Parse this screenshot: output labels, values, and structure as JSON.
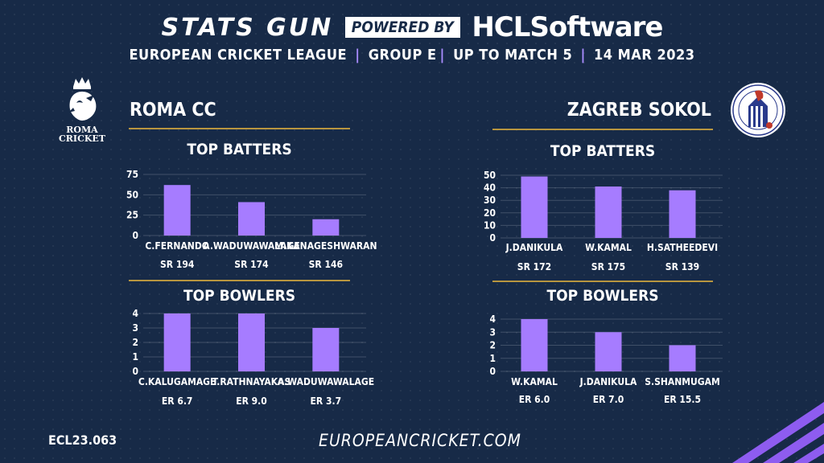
{
  "header": {
    "stats_gun": "STATS GUN",
    "powered_by": "POWERED BY",
    "hcl_a": "HCL",
    "hcl_b": "Software",
    "sub": [
      "EUROPEAN CRICKET LEAGUE",
      "GROUP  E",
      "UP TO MATCH  5",
      "14 MAR 2023"
    ]
  },
  "colors": {
    "background": "#172a47",
    "bar": "#a67cff",
    "accent": "#b8953f",
    "separator": "#a98cff"
  },
  "left_team": {
    "name": "ROMA CC",
    "logo_text": [
      "ROMA",
      "CRICKET"
    ],
    "logo_icon": "crowned-lion-icon"
  },
  "right_team": {
    "name": "ZAGREB SOKOL",
    "logo_icon": "falcon-badge-icon"
  },
  "footer": {
    "code": "ECL23.063",
    "site": "EUROPEANCRICKET.COM"
  },
  "chart_data": [
    {
      "id": "roma-batters",
      "type": "bar",
      "title": "TOP BATTERS",
      "team": "ROMA CC",
      "categories": [
        "C.FERNANDO",
        "A.WADUWAWALAGE",
        "M.KANAGESHWARAN"
      ],
      "values": [
        62,
        41,
        20
      ],
      "sub_labels": [
        "SR 194",
        "SR 174",
        "SR 146"
      ],
      "yticks": [
        0,
        25,
        50,
        75
      ],
      "ylim": [
        0,
        75
      ],
      "grid": true
    },
    {
      "id": "roma-bowlers",
      "type": "bar",
      "title": "TOP BOWLERS",
      "team": "ROMA CC",
      "categories": [
        "C.KALUGAMAGE",
        "T.RATHNAYAKAS",
        "A.WADUWAWALAGE"
      ],
      "values": [
        4,
        4,
        3
      ],
      "sub_labels": [
        "ER 6.7",
        "ER 9.0",
        "ER 3.7"
      ],
      "yticks": [
        0,
        1,
        2,
        3,
        4
      ],
      "ylim": [
        0,
        4
      ],
      "grid": true
    },
    {
      "id": "zagreb-batters",
      "type": "bar",
      "title": "TOP BATTERS",
      "team": "ZAGREB SOKOL",
      "categories": [
        "J.DANIKULA",
        "W.KAMAL",
        "H.SATHEEDEVI"
      ],
      "values": [
        49,
        41,
        38
      ],
      "sub_labels": [
        "SR 172",
        "SR 175",
        "SR 139"
      ],
      "yticks": [
        0,
        10,
        20,
        30,
        40,
        50
      ],
      "ylim": [
        0,
        50
      ],
      "grid": true
    },
    {
      "id": "zagreb-bowlers",
      "type": "bar",
      "title": "TOP BOWLERS",
      "team": "ZAGREB SOKOL",
      "categories": [
        "W.KAMAL",
        "J.DANIKULA",
        "S.SHANMUGAM"
      ],
      "values": [
        4,
        3,
        2
      ],
      "sub_labels": [
        "ER 6.0",
        "ER 7.0",
        "ER 15.5"
      ],
      "yticks": [
        0,
        1,
        2,
        3,
        4
      ],
      "ylim": [
        0,
        4
      ],
      "grid": true
    }
  ]
}
